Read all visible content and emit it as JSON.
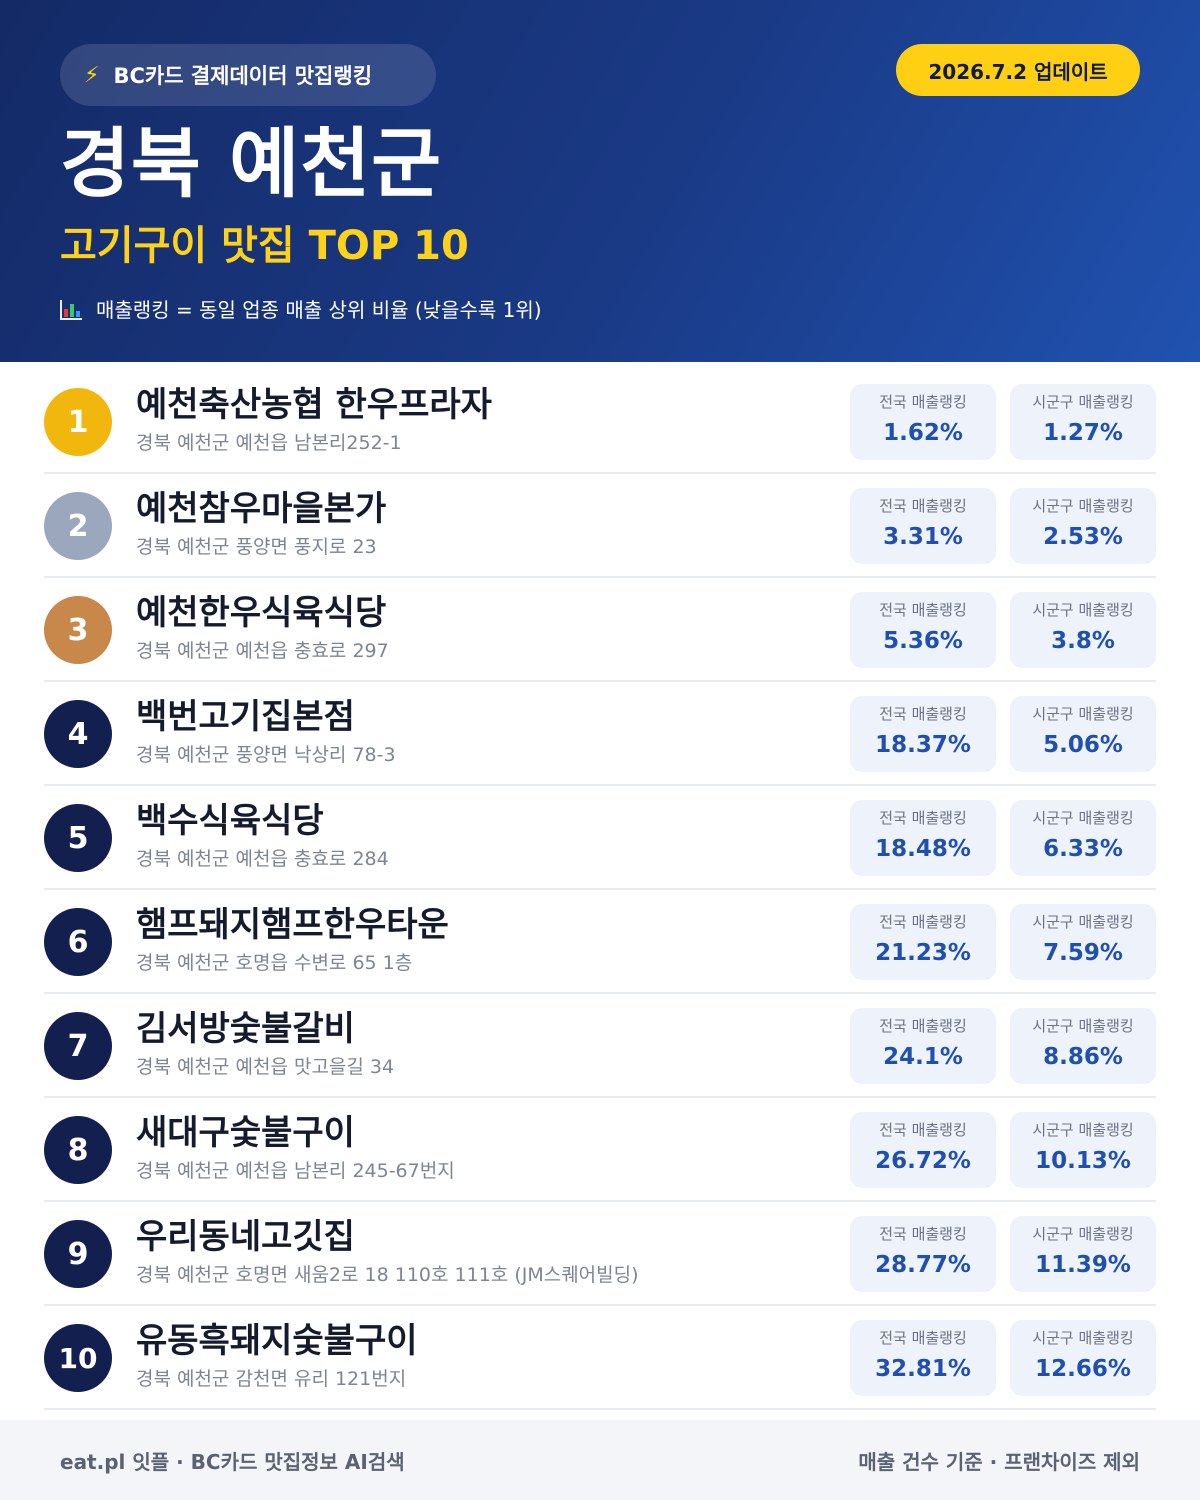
{
  "header": {
    "source_icon": "lightning-bolt-icon",
    "source_label": "BC카드 결제데이터 맛집랭킹",
    "update_label": "2026.7.2 업데이트",
    "region": "경북 예천군",
    "subtitle": "고기구이 맛집 TOP 10",
    "legend_icon": "bar-chart-icon",
    "legend_note": "매출랭킹 = 동일 업종 매출 상위 비율 (낮을수록 1위)"
  },
  "stat_labels": {
    "national": "전국 매출랭킹",
    "local": "시군구 매출랭킹"
  },
  "restaurants": [
    {
      "rank": "1",
      "name": "예천축산농협 한우프라자",
      "address": "경북 예천군 예천읍 남본리252-1",
      "national": "1.62%",
      "local": "1.27%"
    },
    {
      "rank": "2",
      "name": "예천참우마을본가",
      "address": "경북 예천군 풍양면 풍지로 23",
      "national": "3.31%",
      "local": "2.53%"
    },
    {
      "rank": "3",
      "name": "예천한우식육식당",
      "address": "경북 예천군 예천읍 충효로 297",
      "national": "5.36%",
      "local": "3.8%"
    },
    {
      "rank": "4",
      "name": "백번고기집본점",
      "address": "경북 예천군 풍양면 낙상리 78-3",
      "national": "18.37%",
      "local": "5.06%"
    },
    {
      "rank": "5",
      "name": "백수식육식당",
      "address": "경북 예천군 예천읍 충효로 284",
      "national": "18.48%",
      "local": "6.33%"
    },
    {
      "rank": "6",
      "name": "햄프돼지햄프한우타운",
      "address": "경북 예천군 호명읍 수변로 65 1층",
      "national": "21.23%",
      "local": "7.59%"
    },
    {
      "rank": "7",
      "name": "김서방숯불갈비",
      "address": "경북 예천군 예천읍 맛고을길 34",
      "national": "24.1%",
      "local": "8.86%"
    },
    {
      "rank": "8",
      "name": "새대구숯불구이",
      "address": "경북 예천군 예천읍 남본리 245-67번지",
      "national": "26.72%",
      "local": "10.13%"
    },
    {
      "rank": "9",
      "name": "우리동네고깃집",
      "address": "경북 예천군 호명면 새움2로 18 110호 111호 (JM스퀘어빌딩)",
      "national": "28.77%",
      "local": "11.39%"
    },
    {
      "rank": "10",
      "name": "유동흑돼지숯불구이",
      "address": "경북 예천군 감천면 유리 121번지",
      "national": "32.81%",
      "local": "12.66%"
    }
  ],
  "footer": {
    "left": "eat.pl 잇플 · BC카드 맛집정보 AI검색",
    "right": "매출 건수 기준 · 프랜차이즈 제외"
  },
  "colors": {
    "header_dark": "#142a66",
    "header_light": "#2052b0",
    "accent_yellow": "#ffcf14",
    "rank_gold": "#f2b70e",
    "rank_silver": "#9ba7bd",
    "rank_bronze": "#c9884b",
    "rank_default": "#131f4f",
    "stat_value": "#1f4fb0"
  }
}
